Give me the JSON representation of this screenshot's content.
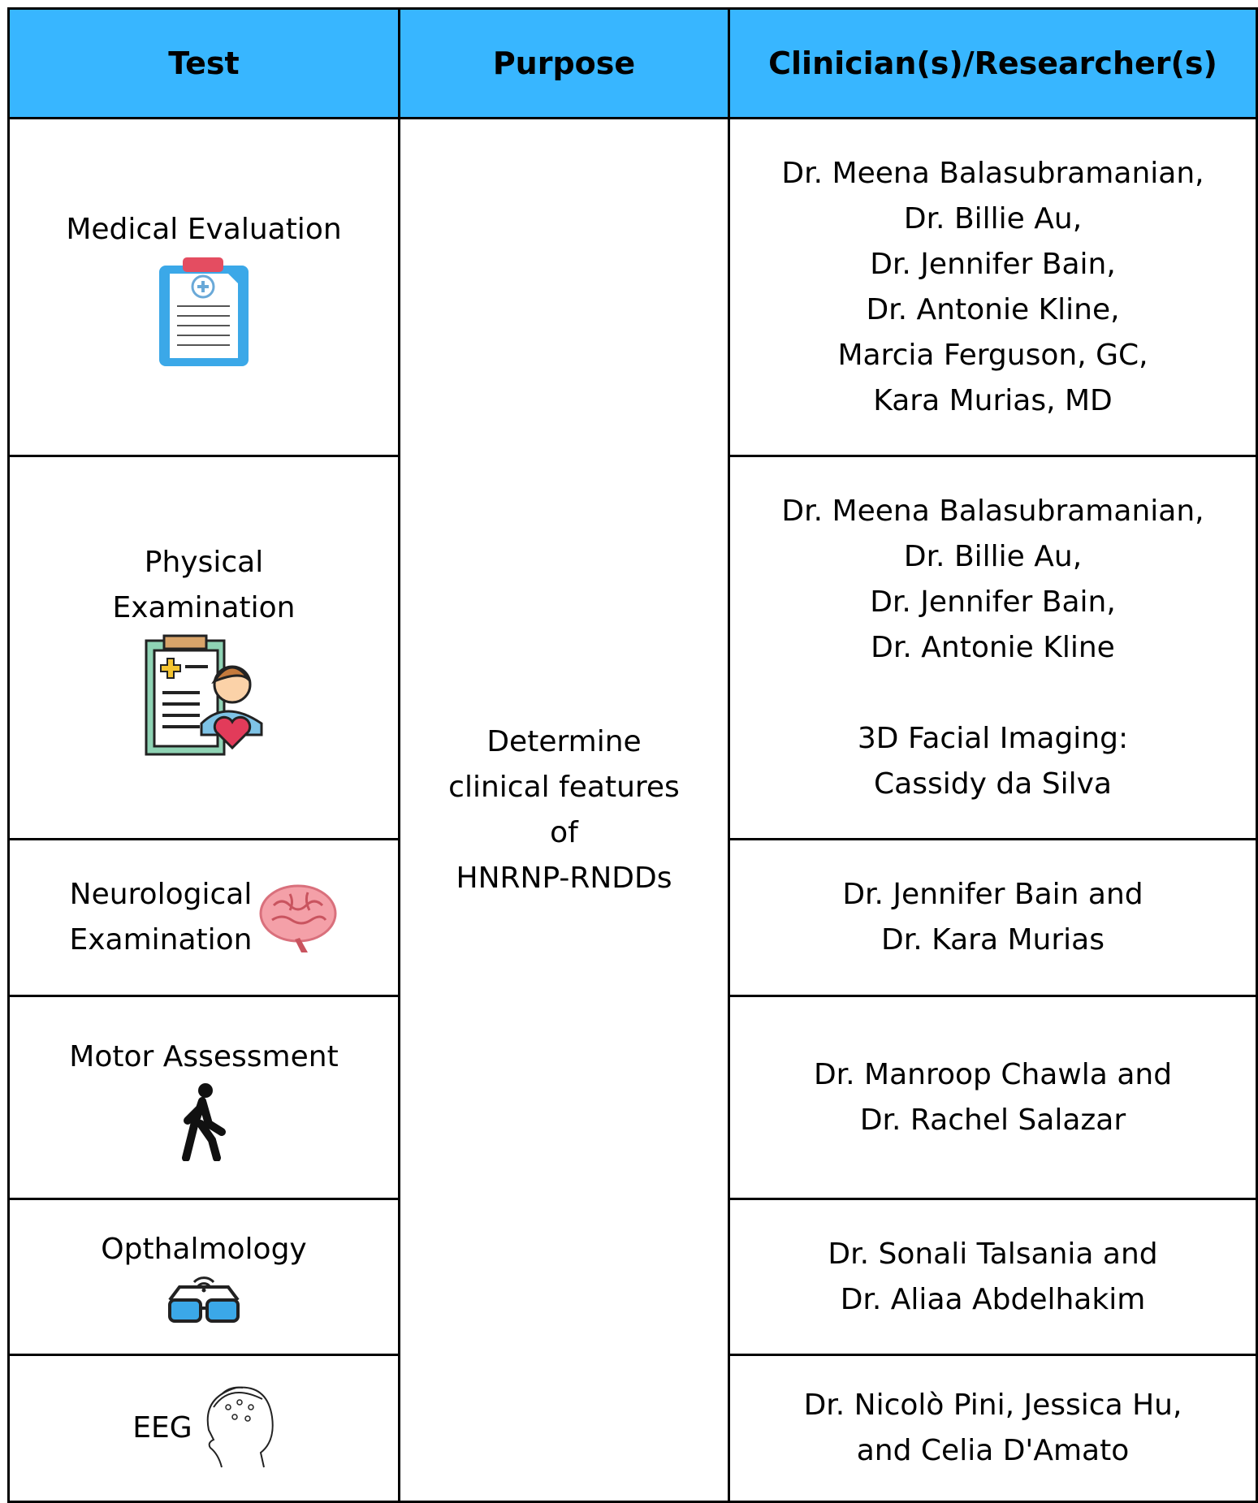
{
  "header": {
    "columns": [
      "Test",
      "Purpose",
      "Clinician(s)/Researcher(s)"
    ]
  },
  "table": {
    "purpose": [
      "Determine",
      "clinical features",
      "of",
      "HNRNP-RNDDs"
    ],
    "rows": [
      {
        "test": [
          "Medical Evaluation"
        ],
        "clinicians": [
          [
            "Dr. Meena Balasubramanian,",
            "Dr. Billie Au,",
            "Dr. Jennifer Bain,",
            "Dr. Antonie Kline,",
            "Marcia Ferguson, GC,",
            "Kara Murias, MD"
          ]
        ]
      },
      {
        "test": [
          "Physical",
          "Examination"
        ],
        "clinicians": [
          [
            "Dr. Meena Balasubramanian,",
            "Dr. Billie Au,",
            "Dr. Jennifer Bain,",
            "Dr. Antonie Kline"
          ],
          [
            "3D Facial Imaging:",
            "Cassidy da Silva"
          ]
        ]
      },
      {
        "test": [
          "Neurological",
          "Examination"
        ],
        "clinicians": [
          [
            "Dr. Jennifer Bain and",
            "Dr. Kara Murias"
          ]
        ]
      },
      {
        "test": [
          "Motor Assessment"
        ],
        "clinicians": [
          [
            "Dr. Manroop Chawla and",
            "Dr. Rachel Salazar"
          ]
        ]
      },
      {
        "test": [
          "Opthalmology"
        ],
        "clinicians": [
          [
            "Dr. Sonali Talsania and",
            "Dr. Aliaa Abdelhakim"
          ]
        ]
      },
      {
        "test": [
          "EEG"
        ],
        "clinicians": [
          [
            "Dr. Nicolò Pini, Jessica Hu,",
            "and Celia D'Amato"
          ]
        ]
      }
    ]
  }
}
